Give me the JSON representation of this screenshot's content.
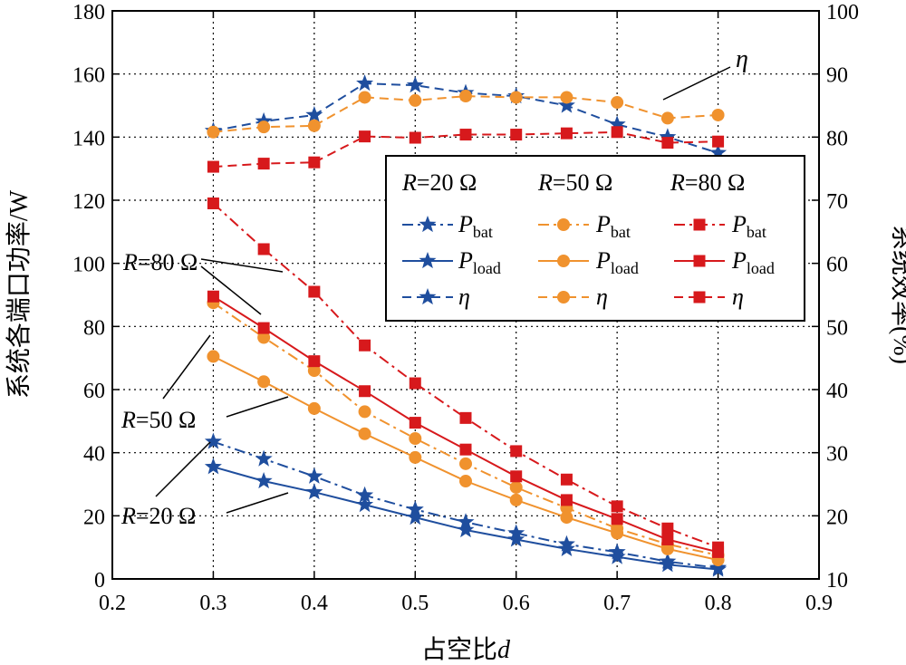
{
  "chart_data": {
    "type": "line",
    "xlabel": "占空比",
    "xlabel_var": "d",
    "ylabel": "系统各端口功率/W",
    "y2label": "系统效率(%)",
    "xlim": [
      0.2,
      0.9
    ],
    "ylim": [
      0,
      180
    ],
    "y2lim": [
      10,
      100
    ],
    "xticks": [
      "0.2",
      "0.3",
      "0.4",
      "0.5",
      "0.6",
      "0.7",
      "0.8",
      "0.9"
    ],
    "yticks": [
      "0",
      "20",
      "40",
      "60",
      "80",
      "100",
      "120",
      "140",
      "160",
      "180"
    ],
    "y2ticks": [
      "10",
      "20",
      "30",
      "40",
      "50",
      "60",
      "70",
      "80",
      "90",
      "100"
    ],
    "grid": true,
    "legend_position": "top-right",
    "x": [
      0.3,
      0.35,
      0.4,
      0.45,
      0.5,
      0.55,
      0.6,
      0.65,
      0.7,
      0.75,
      0.8
    ],
    "groups": [
      {
        "R": "R",
        "label": "=20 Ω",
        "color": "#1f4e9e",
        "marker": "star"
      },
      {
        "R": "R",
        "label": "=50 Ω",
        "color": "#f0922e",
        "marker": "circle"
      },
      {
        "R": "R",
        "label": "=80 Ω",
        "color": "#d7191c",
        "marker": "square"
      }
    ],
    "series": [
      {
        "name": "P",
        "sub": "bat",
        "group": 0,
        "dash": "dashdot",
        "axis": "left",
        "values": [
          43.5,
          38,
          32.5,
          26.5,
          22,
          18,
          14.5,
          11,
          8.5,
          5.5,
          3.5
        ]
      },
      {
        "name": "P",
        "sub": "load",
        "group": 0,
        "dash": "solid",
        "axis": "left",
        "values": [
          35.5,
          31,
          27.5,
          23.5,
          19.5,
          15.5,
          12.5,
          9.5,
          7,
          4.5,
          3
        ]
      },
      {
        "name": "η",
        "sub": "",
        "group": 0,
        "dash": "dashed",
        "axis": "right",
        "values": [
          81,
          82.5,
          83.5,
          88.5,
          88.2,
          87,
          86.5,
          85,
          82,
          80,
          77.5
        ]
      },
      {
        "name": "P",
        "sub": "bat",
        "group": 1,
        "dash": "dashdot",
        "axis": "left",
        "values": [
          87.5,
          76.5,
          66,
          53,
          44.5,
          36.5,
          29,
          22.5,
          16,
          11,
          7.5
        ]
      },
      {
        "name": "P",
        "sub": "load",
        "group": 1,
        "dash": "solid",
        "axis": "left",
        "values": [
          70.5,
          62.5,
          54,
          46,
          38.5,
          31,
          25,
          19.5,
          14.5,
          9.5,
          6
        ]
      },
      {
        "name": "η",
        "sub": "",
        "group": 1,
        "dash": "dashed",
        "axis": "right",
        "values": [
          80.8,
          81.6,
          81.8,
          86.3,
          85.8,
          86.5,
          86.3,
          86.3,
          85.5,
          83,
          83.5
        ]
      },
      {
        "name": "P",
        "sub": "bat",
        "group": 2,
        "dash": "dashdot",
        "axis": "left",
        "values": [
          119,
          104.5,
          91,
          74,
          62,
          51,
          40.5,
          31.5,
          23,
          16,
          10
        ]
      },
      {
        "name": "P",
        "sub": "load",
        "group": 2,
        "dash": "solid",
        "axis": "left",
        "values": [
          89.5,
          79.5,
          69,
          59.5,
          49.5,
          41,
          32.5,
          25,
          19,
          12.5,
          8.5
        ]
      },
      {
        "name": "η",
        "sub": "",
        "group": 2,
        "dash": "dashed",
        "axis": "right",
        "values": [
          75.3,
          75.8,
          76,
          80.1,
          79.9,
          80.4,
          80.4,
          80.6,
          80.8,
          79.1,
          79.3
        ]
      }
    ],
    "annotations": [
      {
        "R": "R",
        "text": "=80 Ω"
      },
      {
        "R": "R",
        "text": "=50 Ω"
      },
      {
        "R": "R",
        "text": "=20 Ω"
      },
      {
        "R": "",
        "text": "η"
      }
    ]
  }
}
